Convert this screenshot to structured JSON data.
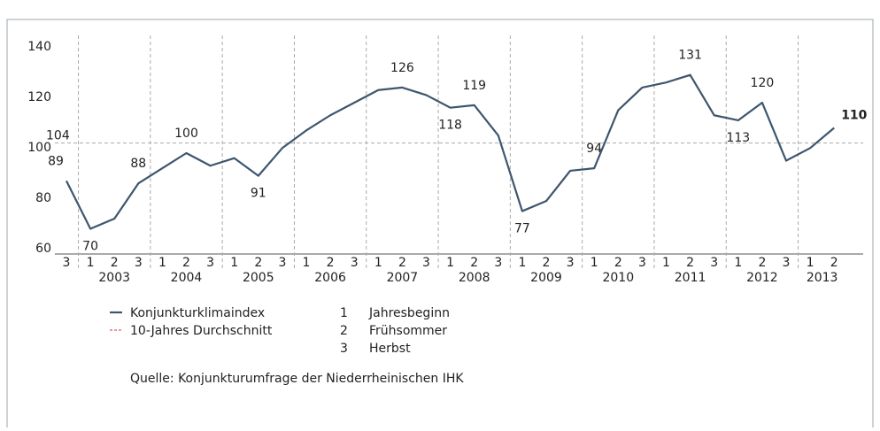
{
  "chart_data": {
    "type": "line",
    "categories": [
      "3",
      "1",
      "2",
      "3",
      "1",
      "2",
      "3",
      "1",
      "2",
      "3",
      "1",
      "2",
      "3",
      "1",
      "2",
      "3",
      "1",
      "2",
      "3",
      "1",
      "2",
      "3",
      "1",
      "2",
      "3",
      "1",
      "2",
      "3",
      "1",
      "2",
      "3",
      "1",
      "2"
    ],
    "years": [
      "2003",
      "2004",
      "2005",
      "2006",
      "2007",
      "2008",
      "2009",
      "2010",
      "2011",
      "2012",
      "2013"
    ],
    "series": [
      {
        "name": "Konjunkturklimaindex",
        "color": "#3d566e",
        "values": [
          89,
          70,
          74,
          88,
          94,
          100,
          95,
          98,
          91,
          102,
          109,
          115,
          120,
          125,
          126,
          123,
          118,
          119,
          107,
          77,
          81,
          93,
          94,
          117,
          126,
          128,
          131,
          115,
          113,
          120,
          97,
          102,
          110
        ],
        "value_labels": [
          "89",
          "70",
          null,
          "88",
          null,
          "100",
          null,
          null,
          "91",
          null,
          null,
          null,
          null,
          null,
          "126",
          null,
          "118",
          "119",
          null,
          "77",
          null,
          null,
          "94",
          null,
          null,
          null,
          "131",
          null,
          "113",
          "120",
          null,
          null,
          "110"
        ]
      }
    ],
    "reference": {
      "name": "10-Jahres Durchschnitt",
      "value": 104,
      "label": "104",
      "color": "#d9343a"
    },
    "key": [
      {
        "key": "1",
        "label": "Jahresbeginn"
      },
      {
        "key": "2",
        "label": "Frühsommer"
      },
      {
        "key": "3",
        "label": "Herbst"
      }
    ],
    "source": "Quelle: Konjunkturumfrage der Niederrheinischen IHK",
    "ylim": [
      60,
      140
    ],
    "yticks": [
      60,
      80,
      100,
      120,
      140
    ]
  }
}
